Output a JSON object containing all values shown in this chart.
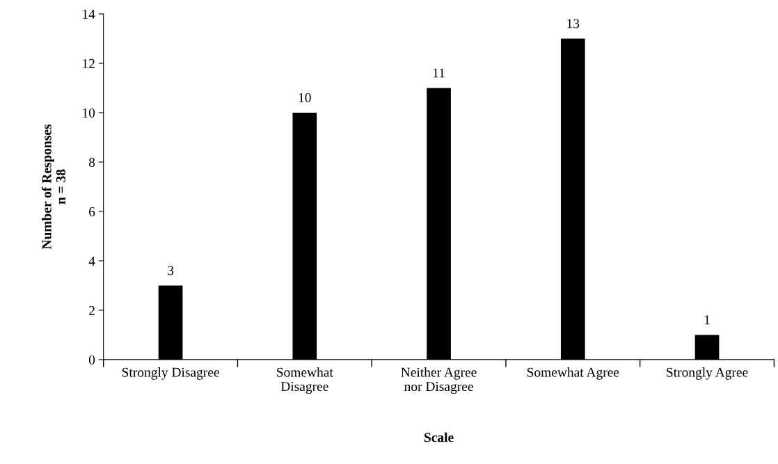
{
  "chart_data": {
    "type": "bar",
    "categories": [
      "Strongly Disagree",
      "Somewhat\nDisagree",
      "Neither Agree\nnor Disagree",
      "Somewhat Agree",
      "Strongly Agree"
    ],
    "values": [
      3,
      10,
      11,
      13,
      1
    ],
    "color": "#000000",
    "xlabel": "Scale",
    "ylabel": "Number of Responses\nn = 38",
    "ylim": [
      0,
      14
    ],
    "yticks": [
      0,
      2,
      4,
      6,
      8,
      10,
      12,
      14
    ],
    "data_labels": true,
    "grid": false,
    "legend": false
  }
}
